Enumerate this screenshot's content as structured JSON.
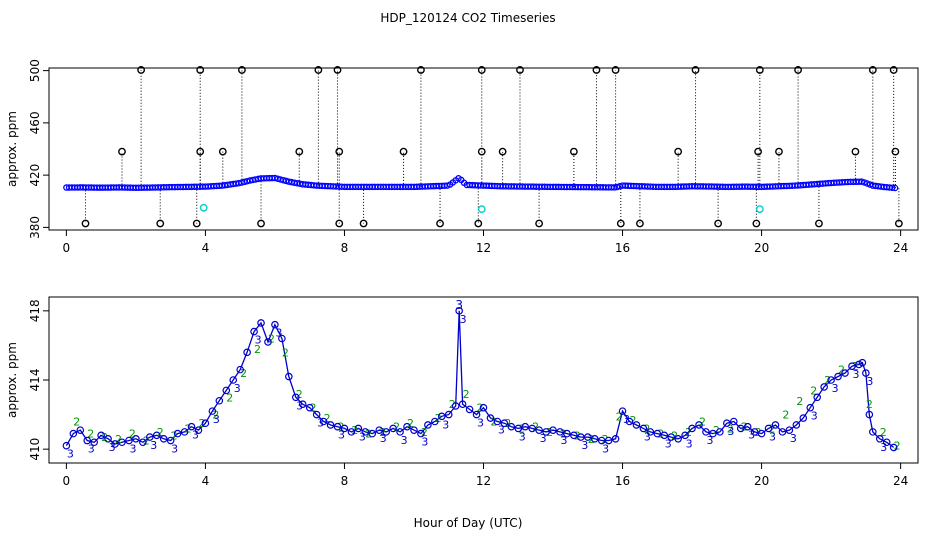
{
  "chart_data": [
    {
      "type": "scatter",
      "title": "HDP_120124  CO2 Timeseries",
      "xlabel": "",
      "ylabel": "approx. ppm",
      "xlim": [
        -0.5,
        24.5
      ],
      "ylim": [
        378,
        502
      ],
      "x_ticks": [
        "0",
        "4",
        "8",
        "12",
        "16",
        "20",
        "24"
      ],
      "y_ticks": [
        "380",
        "420",
        "460",
        "500"
      ],
      "baseline": [
        [
          0.0,
          410.5
        ],
        [
          0.5,
          410.6
        ],
        [
          1.0,
          410.4
        ],
        [
          1.5,
          410.6
        ],
        [
          2.0,
          410.3
        ],
        [
          2.5,
          410.5
        ],
        [
          3.0,
          410.8
        ],
        [
          3.5,
          411.0
        ],
        [
          4.0,
          411.2
        ],
        [
          4.5,
          412.0
        ],
        [
          5.0,
          414.0
        ],
        [
          5.3,
          416.0
        ],
        [
          5.6,
          417.5
        ],
        [
          6.0,
          417.8
        ],
        [
          6.4,
          415.0
        ],
        [
          6.8,
          413.0
        ],
        [
          7.2,
          412.0
        ],
        [
          7.6,
          411.5
        ],
        [
          8.0,
          411.0
        ],
        [
          9.0,
          411.0
        ],
        [
          10.0,
          411.0
        ],
        [
          10.5,
          411.5
        ],
        [
          11.0,
          412.0
        ],
        [
          11.3,
          418.0
        ],
        [
          11.5,
          412.5
        ],
        [
          12.0,
          412.0
        ],
        [
          12.5,
          411.5
        ],
        [
          13.0,
          411.3
        ],
        [
          14.0,
          411.0
        ],
        [
          15.0,
          410.8
        ],
        [
          15.8,
          410.6
        ],
        [
          16.0,
          412.0
        ],
        [
          16.5,
          411.5
        ],
        [
          17.0,
          411.0
        ],
        [
          17.5,
          411.0
        ],
        [
          18.0,
          411.5
        ],
        [
          18.5,
          411.3
        ],
        [
          19.0,
          411.0
        ],
        [
          19.5,
          411.2
        ],
        [
          20.0,
          411.0
        ],
        [
          20.5,
          411.5
        ],
        [
          21.0,
          412.0
        ],
        [
          21.5,
          413.0
        ],
        [
          22.0,
          414.0
        ],
        [
          22.5,
          414.8
        ],
        [
          22.9,
          415.0
        ],
        [
          23.2,
          412.0
        ],
        [
          23.5,
          411.0
        ],
        [
          23.9,
          410.0
        ]
      ],
      "spikes_high": [
        2.15,
        3.85,
        5.05,
        7.25,
        7.8,
        10.2,
        11.95,
        13.05,
        15.25,
        15.8,
        18.1,
        19.95,
        21.05,
        23.2,
        23.8
      ],
      "spikes_mid": [
        1.6,
        3.85,
        4.5,
        6.7,
        7.85,
        9.7,
        11.95,
        12.55,
        14.6,
        17.6,
        19.9,
        20.5,
        22.7,
        23.85
      ],
      "spikes_low": [
        0.55,
        2.7,
        3.75,
        5.6,
        7.85,
        8.55,
        10.75,
        11.85,
        13.6,
        15.95,
        16.5,
        18.75,
        19.85,
        21.65,
        23.95
      ],
      "cyan_points": [
        [
          3.95,
          395
        ],
        [
          11.95,
          394
        ],
        [
          19.95,
          394
        ]
      ]
    },
    {
      "type": "line",
      "title": "",
      "xlabel": "Hour of Day (UTC)",
      "ylabel": "approx. ppm",
      "xlim": [
        -0.5,
        24.5
      ],
      "ylim": [
        409.2,
        418.8
      ],
      "x_ticks": [
        "0",
        "4",
        "8",
        "12",
        "16",
        "20",
        "24"
      ],
      "y_ticks": [
        "410",
        "414",
        "418"
      ],
      "series": [
        {
          "name": "3",
          "color": "#0000cc",
          "x": [
            0.0,
            0.2,
            0.4,
            0.6,
            0.8,
            1.0,
            1.2,
            1.4,
            1.6,
            1.8,
            2.0,
            2.2,
            2.4,
            2.6,
            2.8,
            3.0,
            3.2,
            3.4,
            3.6,
            3.8,
            4.0,
            4.2,
            4.4,
            4.6,
            4.8,
            5.0,
            5.2,
            5.4,
            5.6,
            5.8,
            6.0,
            6.2,
            6.4,
            6.6,
            6.8,
            7.0,
            7.2,
            7.4,
            7.6,
            7.8,
            8.0,
            8.2,
            8.4,
            8.6,
            8.8,
            9.0,
            9.2,
            9.4,
            9.6,
            9.8,
            10.0,
            10.2,
            10.4,
            10.6,
            10.8,
            11.0,
            11.2,
            11.3,
            11.4,
            11.6,
            11.8,
            12.0,
            12.2,
            12.4,
            12.6,
            12.8,
            13.0,
            13.2,
            13.4,
            13.6,
            13.8,
            14.0,
            14.2,
            14.4,
            14.6,
            14.8,
            15.0,
            15.2,
            15.4,
            15.6,
            15.8,
            16.0,
            16.2,
            16.4,
            16.6,
            16.8,
            17.0,
            17.2,
            17.4,
            17.6,
            17.8,
            18.0,
            18.2,
            18.4,
            18.6,
            18.8,
            19.0,
            19.2,
            19.4,
            19.6,
            19.8,
            20.0,
            20.2,
            20.4,
            20.6,
            20.8,
            21.0,
            21.2,
            21.4,
            21.6,
            21.8,
            22.0,
            22.2,
            22.4,
            22.6,
            22.8,
            22.9,
            23.0,
            23.1,
            23.2,
            23.4,
            23.6,
            23.8
          ],
          "values": [
            410.2,
            410.9,
            411.1,
            410.5,
            410.4,
            410.8,
            410.6,
            410.3,
            410.4,
            410.5,
            410.6,
            410.4,
            410.7,
            410.8,
            410.6,
            410.5,
            410.9,
            411.0,
            411.3,
            411.1,
            411.5,
            412.2,
            412.8,
            413.4,
            414.0,
            414.6,
            415.6,
            416.8,
            417.3,
            416.2,
            417.2,
            416.4,
            414.2,
            413.0,
            412.6,
            412.4,
            412.0,
            411.6,
            411.4,
            411.3,
            411.2,
            411.0,
            411.2,
            411.0,
            410.9,
            411.1,
            411.0,
            411.2,
            411.0,
            411.3,
            411.1,
            410.9,
            411.4,
            411.6,
            411.9,
            412.0,
            412.5,
            418.0,
            412.6,
            412.3,
            412.0,
            412.4,
            411.8,
            411.6,
            411.5,
            411.3,
            411.2,
            411.3,
            411.2,
            411.1,
            411.0,
            411.1,
            411.0,
            410.9,
            410.8,
            410.7,
            410.7,
            410.6,
            410.5,
            410.5,
            410.6,
            412.2,
            411.6,
            411.4,
            411.2,
            411.0,
            410.9,
            410.8,
            410.7,
            410.6,
            410.8,
            411.2,
            411.4,
            411.0,
            410.9,
            411.0,
            411.5,
            411.6,
            411.2,
            411.3,
            411.0,
            410.9,
            411.2,
            411.4,
            411.0,
            411.1,
            411.4,
            411.8,
            412.4,
            413.0,
            413.6,
            414.0,
            414.2,
            414.4,
            414.8,
            414.9,
            415.0,
            414.4,
            412.0,
            411.0,
            410.6,
            410.4,
            410.1
          ]
        },
        {
          "name": "2",
          "color": "#009900",
          "x": [
            0.3,
            0.7,
            1.1,
            1.5,
            1.9,
            2.3,
            2.7,
            3.1,
            3.5,
            3.9,
            4.3,
            4.7,
            5.1,
            5.5,
            5.9,
            6.3,
            6.7,
            7.1,
            7.5,
            7.9,
            8.3,
            8.7,
            9.1,
            9.5,
            9.9,
            10.3,
            10.7,
            11.1,
            11.5,
            11.9,
            12.3,
            12.7,
            13.1,
            13.5,
            13.9,
            14.3,
            14.7,
            15.1,
            15.5,
            15.9,
            16.3,
            16.7,
            17.1,
            17.5,
            17.9,
            18.3,
            18.7,
            19.1,
            19.5,
            19.9,
            20.3,
            20.7,
            21.1,
            21.5,
            21.9,
            22.3,
            22.7,
            23.1,
            23.5,
            23.9
          ],
          "values": [
            411.6,
            410.9,
            410.7,
            410.6,
            410.9,
            410.5,
            411.0,
            410.8,
            411.2,
            411.5,
            412.0,
            413.0,
            414.4,
            415.8,
            416.4,
            415.6,
            413.2,
            412.4,
            411.8,
            411.3,
            411.1,
            410.9,
            411.0,
            411.3,
            411.5,
            411.0,
            411.8,
            412.6,
            413.2,
            412.4,
            411.6,
            411.5,
            411.2,
            411.3,
            411.0,
            410.9,
            410.8,
            410.6,
            410.6,
            411.9,
            411.7,
            411.2,
            410.9,
            410.8,
            411.0,
            411.6,
            411.1,
            411.2,
            411.3,
            411.0,
            411.2,
            412.0,
            412.8,
            413.4,
            414.0,
            414.6,
            414.8,
            412.6,
            411.0,
            410.2
          ]
        }
      ]
    }
  ]
}
